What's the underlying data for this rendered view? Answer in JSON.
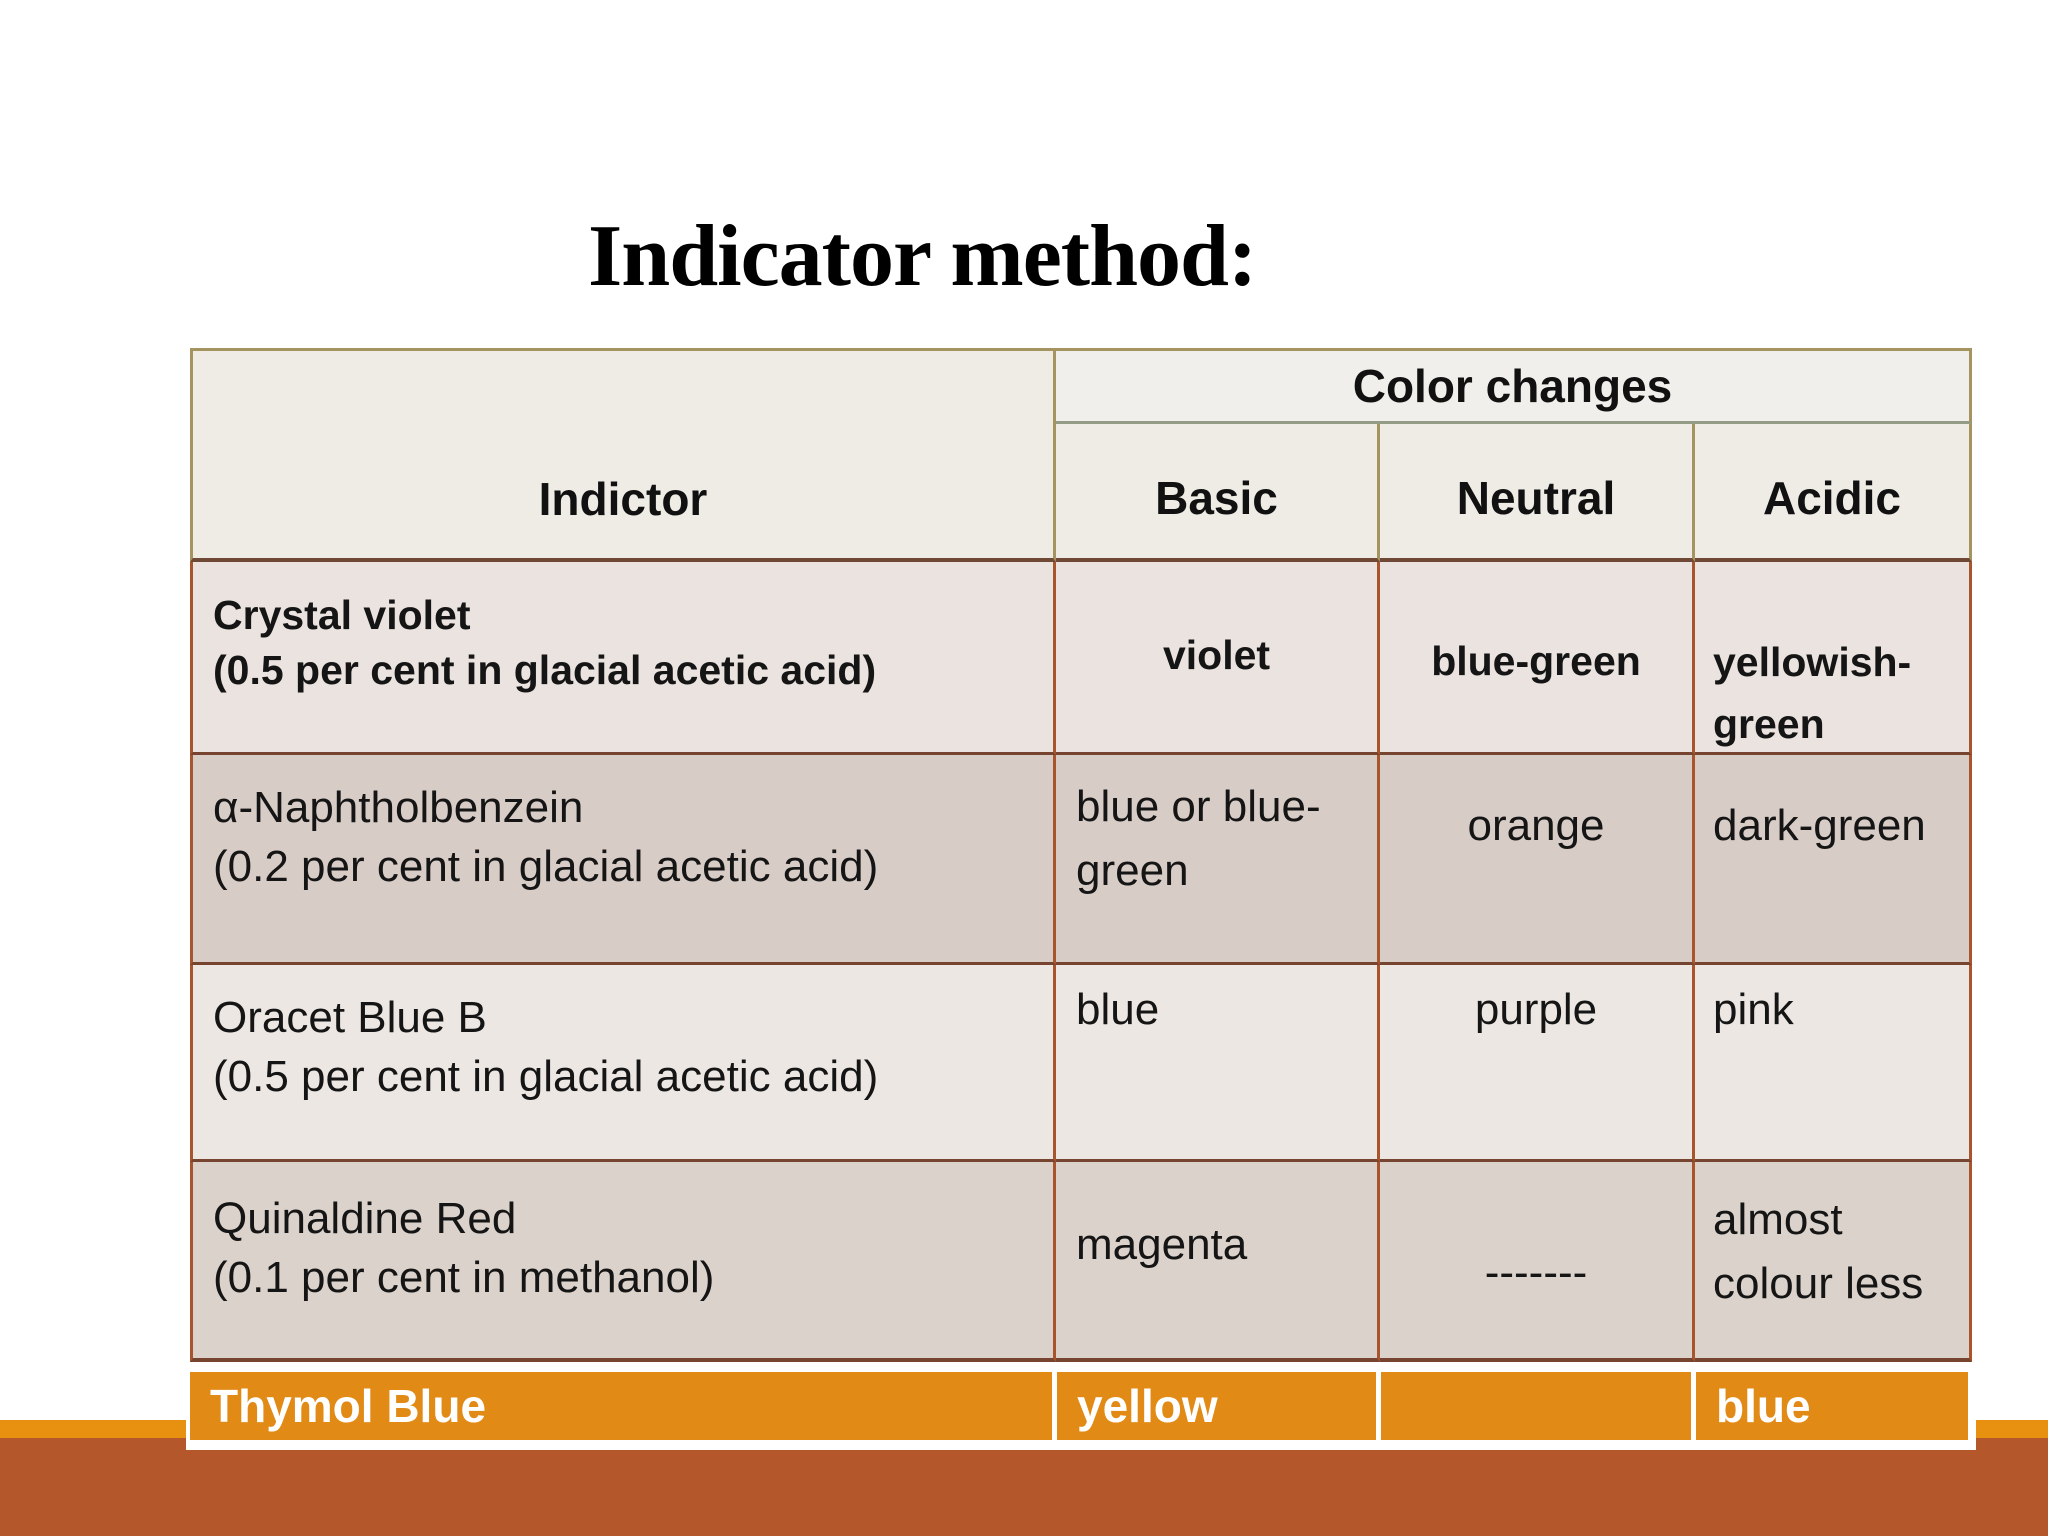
{
  "slide": {
    "title": "Indicator method:"
  },
  "table": {
    "header": {
      "indicator": "Indictor",
      "color_changes": "Color changes",
      "basic": "Basic",
      "neutral": "Neutral",
      "acidic": "Acidic"
    },
    "rows": [
      {
        "indicator_line1": "Crystal violet",
        "indicator_line2": "(0.5 per cent in glacial acetic acid)",
        "basic": "violet",
        "neutral": "blue-green",
        "acidic": "yellowish-green"
      },
      {
        "indicator_line1": "α-Naphtholbenzein",
        "indicator_line2": "(0.2 per cent in glacial acetic acid)",
        "basic": "blue or blue-green",
        "neutral": "orange",
        "acidic": "dark-green"
      },
      {
        "indicator_line1": "Oracet Blue B",
        "indicator_line2": "(0.5 per cent in glacial acetic acid)",
        "basic": "blue",
        "neutral": "purple",
        "acidic": "pink"
      },
      {
        "indicator_line1": "Quinaldine Red",
        "indicator_line2": " (0.1 per cent in methanol)",
        "basic": "magenta",
        "neutral": "-------",
        "acidic": "almost colour less"
      }
    ],
    "footer_row": {
      "indicator": "Thymol Blue",
      "basic": "yellow",
      "neutral": "",
      "acidic": "blue"
    }
  },
  "colors": {
    "footer_orange": "#E28A16",
    "strip_orange": "#E8900F",
    "band_rust": "#B4572A",
    "header_border_tan": "#A59360",
    "body_border_rust": "#A8552D",
    "row_divider_brown": "#77452F"
  }
}
